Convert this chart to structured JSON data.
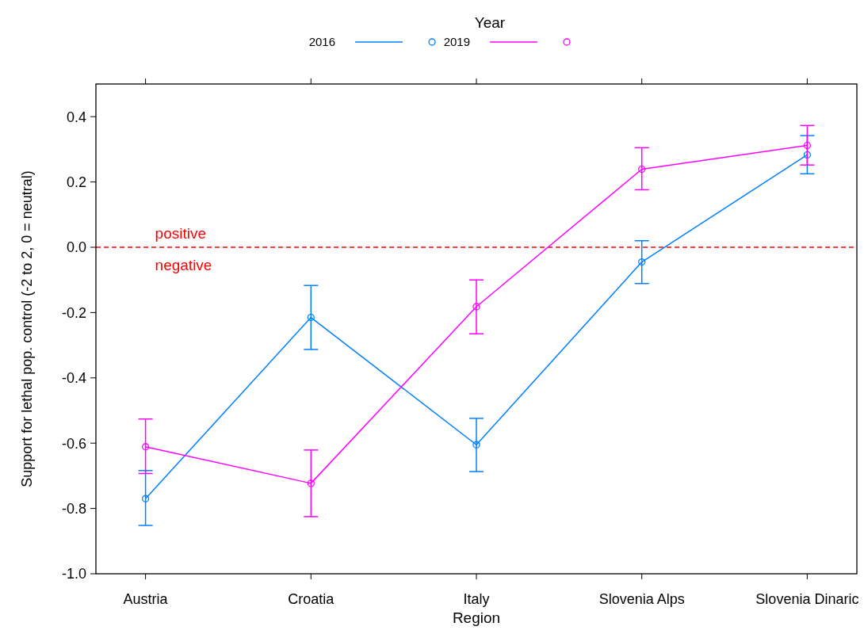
{
  "chart_data": {
    "type": "line",
    "xlabel": "Region",
    "ylabel": "Support for lethal pop. control (-2 to 2, 0 = neutral)",
    "legend_title": "Year",
    "categories": [
      "Austria",
      "Croatia",
      "Italy",
      "Slovenia Alps",
      "Slovenia Dinaric"
    ],
    "series": [
      {
        "name": "2016",
        "color": "#0080ff",
        "values": [
          -0.77,
          -0.215,
          -0.605,
          -0.045,
          0.283
        ],
        "errors": [
          [
            -0.852,
            -0.684
          ],
          [
            -0.313,
            -0.117
          ],
          [
            -0.687,
            -0.524
          ],
          [
            -0.111,
            0.02
          ],
          [
            0.225,
            0.342
          ]
        ]
      },
      {
        "name": "2019",
        "color": "#ff00ff",
        "values": [
          -0.611,
          -0.723,
          -0.182,
          0.239,
          0.312
        ],
        "errors": [
          [
            -0.693,
            -0.526
          ],
          [
            -0.825,
            -0.621
          ],
          [
            -0.265,
            -0.1
          ],
          [
            0.176,
            0.305
          ],
          [
            0.252,
            0.373
          ]
        ]
      }
    ],
    "ylim": [
      -1.0,
      0.5
    ],
    "yticks": [
      {
        "value": -1.0,
        "label": "-1.0"
      },
      -0.8,
      -0.6,
      -0.4,
      -0.2,
      {
        "value": 0,
        "label": "0.0"
      },
      0.2,
      0.4
    ],
    "ref_lines": [
      {
        "axis": "y",
        "value": 0,
        "color": "#ff0000",
        "line_style": "dashed"
      }
    ],
    "annotations": [
      "positive",
      "negative"
    ],
    "legend": "top",
    "marker": "circle",
    "line_style": "solid",
    "grid": false
  }
}
